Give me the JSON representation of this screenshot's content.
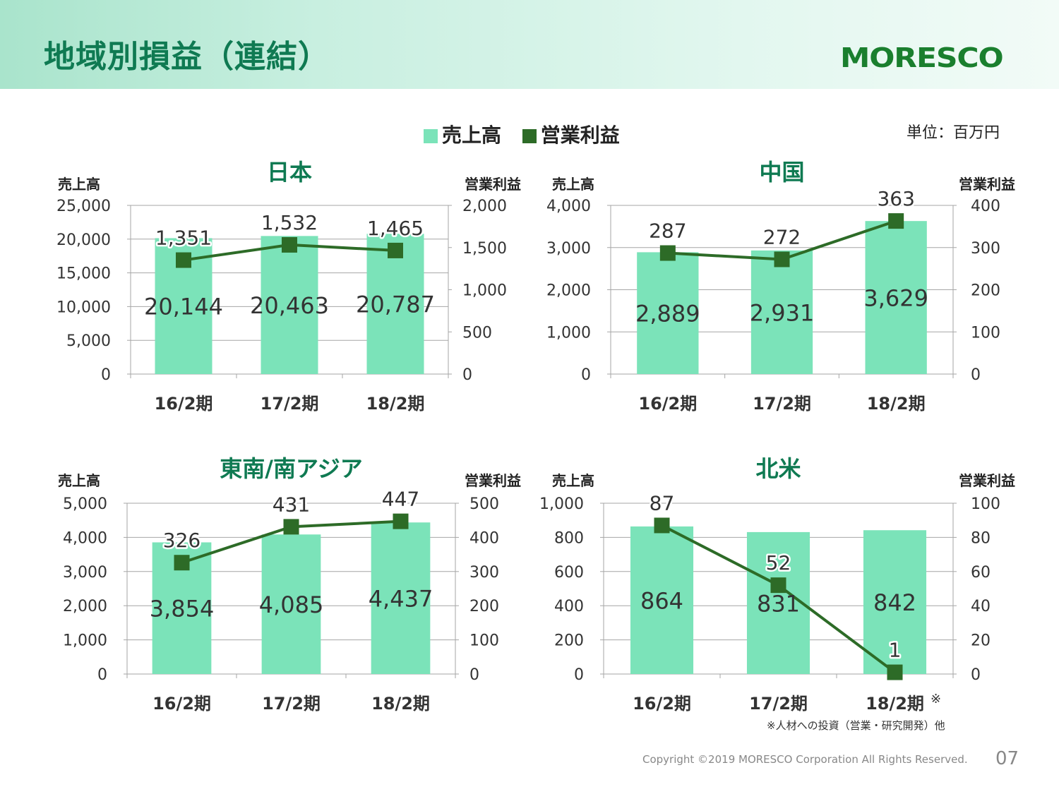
{
  "header": {
    "title": "地域別損益（連結）",
    "logo_text": "MORESCO"
  },
  "legend": {
    "sales_label": "売上高",
    "profit_label": "営業利益"
  },
  "unit_label": "単位：百万円",
  "colors": {
    "bar": "#7be3b9",
    "line": "#2d6b27",
    "title": "#0f7a52",
    "grid": "#a6a6a6"
  },
  "chart_data": [
    {
      "type": "bar+line",
      "title": "日本",
      "categories": [
        "16/2期",
        "17/2期",
        "18/2期"
      ],
      "ylabel_left": "売上高",
      "ylabel_right": "営業利益",
      "left_ylim": [
        0,
        25000
      ],
      "left_ticks": [
        "0",
        "5,000",
        "10,000",
        "15,000",
        "20,000",
        "25,000"
      ],
      "right_ylim": [
        0,
        2000
      ],
      "right_ticks": [
        "0",
        "500",
        "1,000",
        "1,500",
        "2,000"
      ],
      "sales": [
        20144,
        20463,
        20787
      ],
      "sales_labels": [
        "20,144",
        "20,463",
        "20,787"
      ],
      "profit": [
        1351,
        1532,
        1465
      ],
      "profit_labels": [
        "1,351",
        "1,532",
        "1,465"
      ]
    },
    {
      "type": "bar+line",
      "title": "中国",
      "categories": [
        "16/2期",
        "17/2期",
        "18/2期"
      ],
      "ylabel_left": "売上高",
      "ylabel_right": "営業利益",
      "left_ylim": [
        0,
        4000
      ],
      "left_ticks": [
        "0",
        "1,000",
        "2,000",
        "3,000",
        "4,000"
      ],
      "right_ylim": [
        0,
        400
      ],
      "right_ticks": [
        "0",
        "100",
        "200",
        "300",
        "400"
      ],
      "sales": [
        2889,
        2931,
        3629
      ],
      "sales_labels": [
        "2,889",
        "2,931",
        "3,629"
      ],
      "profit": [
        287,
        272,
        363
      ],
      "profit_labels": [
        "287",
        "272",
        "363"
      ]
    },
    {
      "type": "bar+line",
      "title": "東南/南アジア",
      "categories": [
        "16/2期",
        "17/2期",
        "18/2期"
      ],
      "ylabel_left": "売上高",
      "ylabel_right": "営業利益",
      "left_ylim": [
        0,
        5000
      ],
      "left_ticks": [
        "0",
        "1,000",
        "2,000",
        "3,000",
        "4,000",
        "5,000"
      ],
      "right_ylim": [
        0,
        500
      ],
      "right_ticks": [
        "0",
        "100",
        "200",
        "300",
        "400",
        "500"
      ],
      "sales": [
        3854,
        4085,
        4437
      ],
      "sales_labels": [
        "3,854",
        "4,085",
        "4,437"
      ],
      "profit": [
        326,
        431,
        447
      ],
      "profit_labels": [
        "326",
        "431",
        "447"
      ]
    },
    {
      "type": "bar+line",
      "title": "北米",
      "categories": [
        "16/2期",
        "17/2期",
        "18/2期"
      ],
      "last_category_mark": "※",
      "ylabel_left": "売上高",
      "ylabel_right": "営業利益",
      "left_ylim": [
        0,
        1000
      ],
      "left_ticks": [
        "0",
        "200",
        "400",
        "600",
        "800",
        "1,000"
      ],
      "right_ylim": [
        0,
        100
      ],
      "right_ticks": [
        "0",
        "20",
        "40",
        "60",
        "80",
        "100"
      ],
      "sales": [
        864,
        831,
        842
      ],
      "sales_labels": [
        "864",
        "831",
        "842"
      ],
      "profit": [
        87,
        52,
        1
      ],
      "profit_labels": [
        "87",
        "52",
        "1"
      ]
    }
  ],
  "footnote": "※人材への投資（営業・研究開発）他",
  "copyright": "Copyright ©2019 MORESCO Corporation All Rights Reserved.",
  "page_number": "07"
}
